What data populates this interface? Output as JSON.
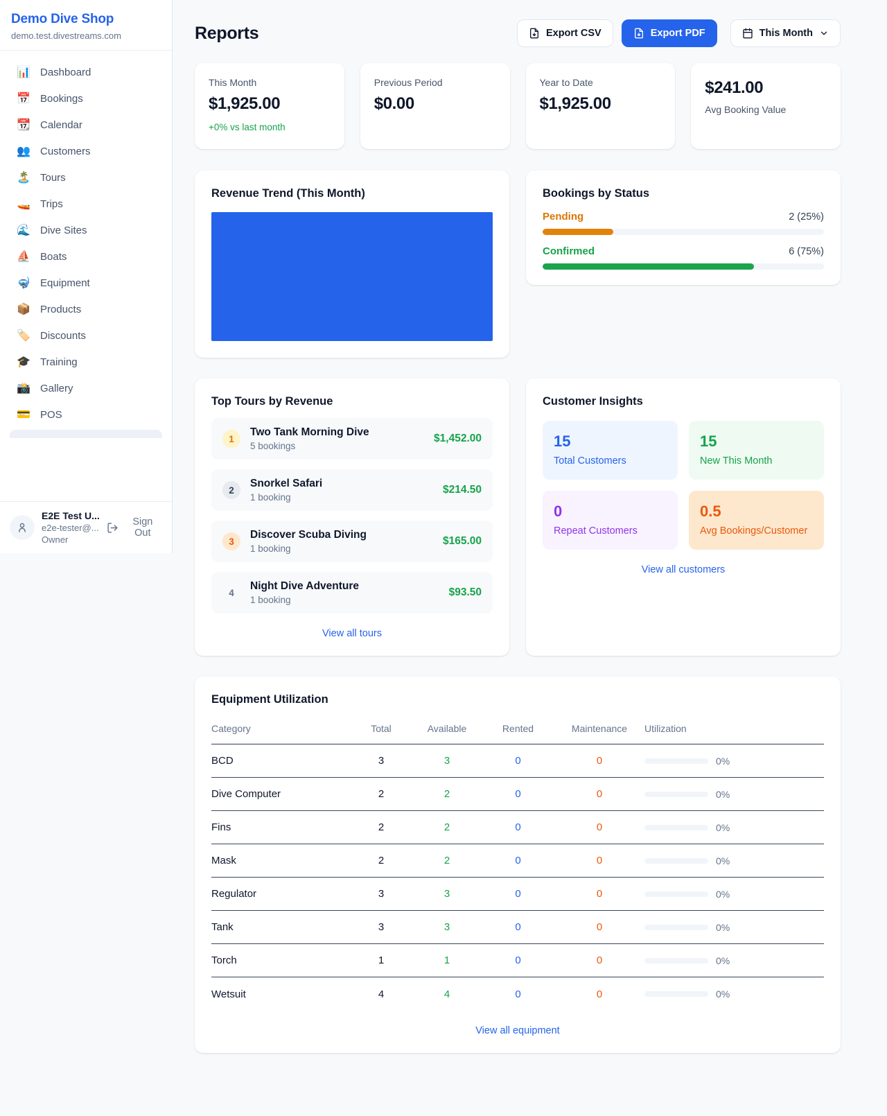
{
  "sidebar": {
    "title": "Demo Dive Shop",
    "subdomain": "demo.test.divestreams.com",
    "items": [
      {
        "icon": "📊",
        "label": "Dashboard"
      },
      {
        "icon": "📅",
        "label": "Bookings"
      },
      {
        "icon": "📆",
        "label": "Calendar"
      },
      {
        "icon": "👥",
        "label": "Customers"
      },
      {
        "icon": "🏝️",
        "label": "Tours"
      },
      {
        "icon": "🚤",
        "label": "Trips"
      },
      {
        "icon": "🌊",
        "label": "Dive Sites"
      },
      {
        "icon": "⛵",
        "label": "Boats"
      },
      {
        "icon": "🤿",
        "label": "Equipment"
      },
      {
        "icon": "📦",
        "label": "Products"
      },
      {
        "icon": "🏷️",
        "label": "Discounts"
      },
      {
        "icon": "🎓",
        "label": "Training"
      },
      {
        "icon": "📸",
        "label": "Gallery"
      },
      {
        "icon": "💳",
        "label": "POS"
      }
    ],
    "user": {
      "name": "E2E Test U...",
      "email": "e2e-tester@...",
      "role": "Owner",
      "sign_out_label": "Sign Out"
    }
  },
  "header": {
    "title": "Reports",
    "export_csv_label": "Export CSV",
    "export_pdf_label": "Export PDF",
    "period_label": "This Month",
    "icons": {
      "export_csv": "file-down-icon",
      "export_pdf": "file-down-icon",
      "period": "calendar-icon",
      "period_caret": "chevron-down-icon"
    }
  },
  "stats": [
    {
      "label": "This Month",
      "value": "$1,925.00",
      "note": "+0% vs last month"
    },
    {
      "label": "Previous Period",
      "value": "$0.00",
      "note": ""
    },
    {
      "label": "Year to Date",
      "value": "$1,925.00",
      "note": ""
    },
    {
      "label": "Avg Booking Value",
      "value": "$241.00",
      "note": ""
    }
  ],
  "revenue_trend": {
    "title": "Revenue Trend (This Month)",
    "bar_color": "#2563eb"
  },
  "bookings_by_status": {
    "title": "Bookings by Status",
    "rows": [
      {
        "label": "Pending",
        "value": "2 (25%)",
        "pct": 25,
        "color": "#e18209"
      },
      {
        "label": "Confirmed",
        "value": "6 (75%)",
        "pct": 75,
        "color": "#1ca34e"
      }
    ]
  },
  "chart_data": {
    "type": "bar",
    "title": "Bookings by Status",
    "categories": [
      "Pending",
      "Confirmed"
    ],
    "values": [
      2,
      6
    ],
    "percentages": [
      25,
      75
    ]
  },
  "top_tours": {
    "title": "Top Tours by Revenue",
    "items": [
      {
        "rank": "1",
        "name": "Two Tank Morning Dive",
        "bookings": "5 bookings",
        "amount": "$1,452.00"
      },
      {
        "rank": "2",
        "name": "Snorkel Safari",
        "bookings": "1 booking",
        "amount": "$214.50"
      },
      {
        "rank": "3",
        "name": "Discover Scuba Diving",
        "bookings": "1 booking",
        "amount": "$165.00"
      },
      {
        "rank": "4",
        "name": "Night Dive Adventure",
        "bookings": "1 booking",
        "amount": "$93.50"
      }
    ],
    "view_all_label": "View all tours"
  },
  "customer_insights": {
    "title": "Customer Insights",
    "tiles": [
      {
        "value": "15",
        "label": "Total Customers",
        "color": "#2563eb"
      },
      {
        "value": "15",
        "label": "New This Month",
        "color": "#16a34a"
      },
      {
        "value": "0",
        "label": "Repeat Customers",
        "color": "#9333ea"
      },
      {
        "value": "0.5",
        "label": "Avg Bookings/Customer",
        "color": "#ea580c"
      }
    ],
    "view_all_label": "View all customers"
  },
  "equipment": {
    "title": "Equipment Utilization",
    "columns": [
      "Category",
      "Total",
      "Available",
      "Rented",
      "Maintenance",
      "Utilization"
    ],
    "rows": [
      {
        "category": "BCD",
        "total": "3",
        "available": "3",
        "rented": "0",
        "maintenance": "0",
        "utilization": "0%",
        "pct": 0
      },
      {
        "category": "Dive Computer",
        "total": "2",
        "available": "2",
        "rented": "0",
        "maintenance": "0",
        "utilization": "0%",
        "pct": 0
      },
      {
        "category": "Fins",
        "total": "2",
        "available": "2",
        "rented": "0",
        "maintenance": "0",
        "utilization": "0%",
        "pct": 0
      },
      {
        "category": "Mask",
        "total": "2",
        "available": "2",
        "rented": "0",
        "maintenance": "0",
        "utilization": "0%",
        "pct": 0
      },
      {
        "category": "Regulator",
        "total": "3",
        "available": "3",
        "rented": "0",
        "maintenance": "0",
        "utilization": "0%",
        "pct": 0
      },
      {
        "category": "Tank",
        "total": "3",
        "available": "3",
        "rented": "0",
        "maintenance": "0",
        "utilization": "0%",
        "pct": 0
      },
      {
        "category": "Torch",
        "total": "1",
        "available": "1",
        "rented": "0",
        "maintenance": "0",
        "utilization": "0%",
        "pct": 0
      },
      {
        "category": "Wetsuit",
        "total": "4",
        "available": "4",
        "rented": "0",
        "maintenance": "0",
        "utilization": "0%",
        "pct": 0
      }
    ],
    "view_all_label": "View all equipment"
  }
}
